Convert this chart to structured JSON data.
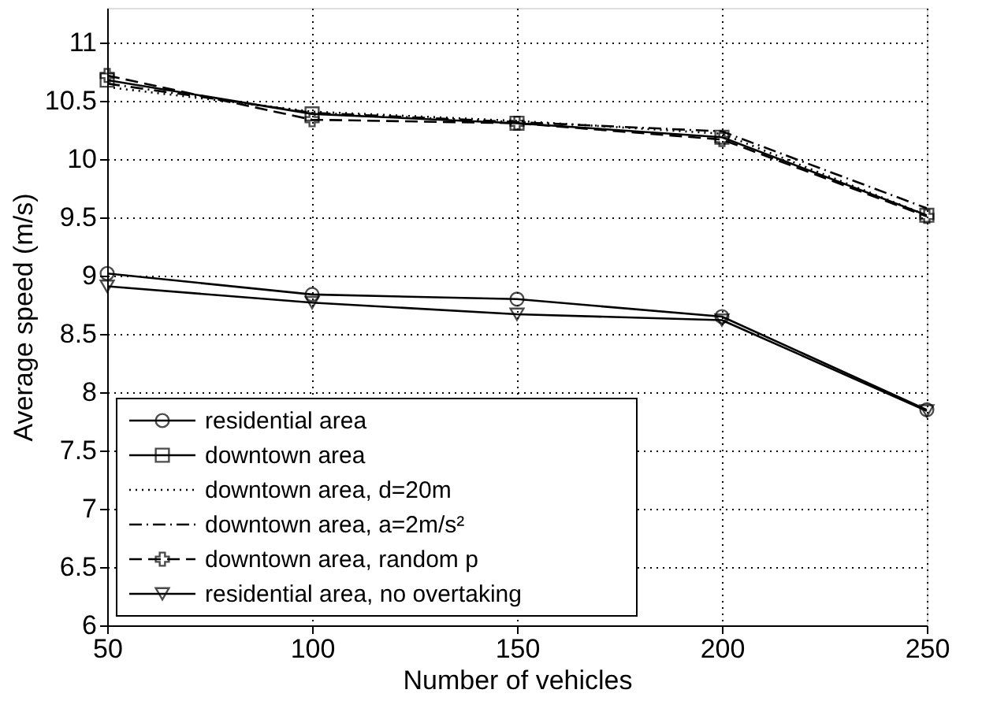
{
  "chart_data": {
    "type": "line",
    "xlabel": "Number of vehicles",
    "ylabel": "Average speed (m/s)",
    "x": [
      50,
      100,
      150,
      200,
      250
    ],
    "series": [
      {
        "name": "residential area",
        "color": "#000000",
        "marker": "circle",
        "line_style": "solid",
        "values": [
          9.02,
          8.84,
          8.8,
          8.65,
          7.85
        ]
      },
      {
        "name": "downtown area",
        "color": "#000000",
        "marker": "square",
        "line_style": "solid",
        "values": [
          10.68,
          10.39,
          10.31,
          10.19,
          9.52
        ]
      },
      {
        "name": "downtown area, d=20m",
        "color": "#000000",
        "marker": "none",
        "line_style": "dotted",
        "values": [
          10.62,
          10.41,
          10.33,
          10.22,
          9.52
        ]
      },
      {
        "name": "downtown area, a=2m/s²",
        "color": "#000000",
        "marker": "none",
        "line_style": "dashdot",
        "values": [
          10.65,
          10.4,
          10.32,
          10.24,
          9.58
        ]
      },
      {
        "name": "downtown area, random p",
        "color": "#000000",
        "marker": "cross",
        "line_style": "dashed",
        "values": [
          10.72,
          10.34,
          10.31,
          10.17,
          9.51
        ]
      },
      {
        "name": "residential area, no overtaking",
        "color": "#000000",
        "marker": "triangle",
        "line_style": "solid",
        "values": [
          8.91,
          8.77,
          8.67,
          8.62,
          7.84
        ]
      }
    ],
    "xlim": [
      50,
      250
    ],
    "xticks": [
      50,
      100,
      150,
      200,
      250
    ],
    "ylim": [
      6,
      11.3
    ],
    "yticks": [
      6,
      6.5,
      7,
      7.5,
      8,
      8.5,
      9,
      9.5,
      10,
      10.5,
      11
    ],
    "grid": true,
    "legend": "bottom left"
  }
}
